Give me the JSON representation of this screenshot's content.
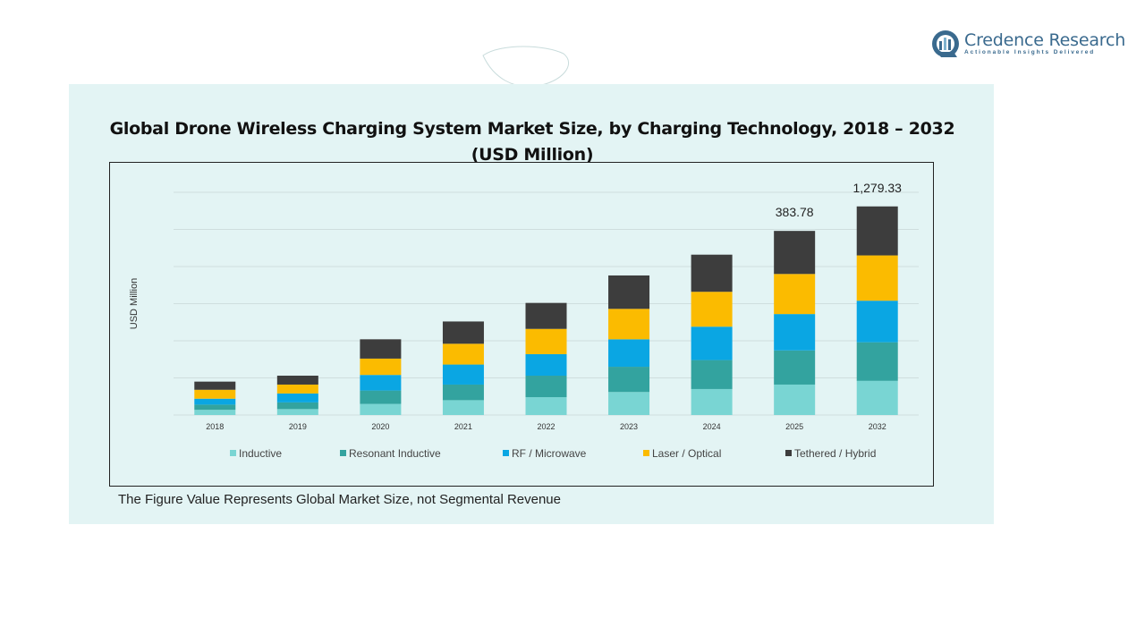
{
  "brand": {
    "name": "Credence Research",
    "tagline": "Actionable Insights Delivered"
  },
  "footnote": "The Figure Value Represents Global Market Size, not Segmental Revenue",
  "colors": {
    "panel": "#e3f4f4",
    "grid": "#cfdede",
    "brand": "#3a6a8e"
  },
  "chart_data": {
    "type": "bar",
    "stacked": true,
    "title": "Global Drone Wireless Charging System Market Size, by Charging Technology, 2018 – 2032 (USD Million)",
    "xlabel": "",
    "ylabel": "USD Million",
    "grid": true,
    "legend_position": "bottom",
    "categories": [
      "2018",
      "2019",
      "2020",
      "2021",
      "2022",
      "2023",
      "2024",
      "2025",
      "2032"
    ],
    "series": [
      {
        "name": "Inductive",
        "color": "#79d5d3",
        "values": [
          7,
          8,
          15,
          20,
          24,
          31,
          35,
          41,
          46
        ]
      },
      {
        "name": "Resonant Inductive",
        "color": "#33a39f",
        "values": [
          7,
          9,
          18,
          21,
          29,
          34,
          39,
          46,
          52
        ]
      },
      {
        "name": "RF / Microwave",
        "color": "#0aa6e3",
        "values": [
          8,
          12,
          21,
          27,
          29,
          37,
          45,
          49,
          56
        ]
      },
      {
        "name": "Laser / Optical",
        "color": "#fbbb00",
        "values": [
          12,
          12,
          22,
          28,
          34,
          41,
          47,
          54,
          61
        ]
      },
      {
        "name": "Tethered / Hybrid",
        "color": "#3d3d3d",
        "values": [
          11,
          12,
          26,
          30,
          35,
          45,
          50,
          58,
          66
        ]
      }
    ],
    "ylim": [
      0,
      300
    ],
    "data_labels": [
      {
        "category": "2025",
        "text": "383.78"
      },
      {
        "category": "2032",
        "text": "1,279.33"
      }
    ]
  }
}
